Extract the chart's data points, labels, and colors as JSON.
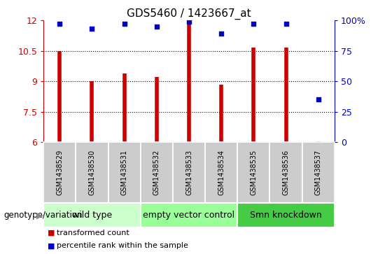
{
  "title": "GDS5460 / 1423667_at",
  "samples": [
    "GSM1438529",
    "GSM1438530",
    "GSM1438531",
    "GSM1438532",
    "GSM1438533",
    "GSM1438534",
    "GSM1438535",
    "GSM1438536",
    "GSM1438537"
  ],
  "transformed_counts": [
    10.5,
    9.0,
    9.4,
    9.2,
    11.8,
    8.85,
    10.65,
    10.65,
    6.05
  ],
  "percentile_ranks": [
    97,
    93,
    97,
    95,
    99,
    89,
    97,
    97,
    35
  ],
  "ylim_left": [
    6,
    12
  ],
  "ylim_right": [
    0,
    100
  ],
  "yticks_left": [
    6,
    7.5,
    9,
    10.5,
    12
  ],
  "yticks_right": [
    0,
    25,
    50,
    75,
    100
  ],
  "groups": [
    {
      "label": "wild type",
      "indices": [
        0,
        1,
        2
      ],
      "color": "#ccffcc"
    },
    {
      "label": "empty vector control",
      "indices": [
        3,
        4,
        5
      ],
      "color": "#99ff99"
    },
    {
      "label": "Smn knockdown",
      "indices": [
        6,
        7,
        8
      ],
      "color": "#44cc44"
    }
  ],
  "bar_color": "#cc0000",
  "dot_color": "#0000cc",
  "bg_sample_color": "#cccccc",
  "genotype_label": "genotype/variation",
  "legend_transformed": "transformed count",
  "legend_percentile": "percentile rank within the sample",
  "title_fontsize": 11,
  "tick_fontsize": 9,
  "sample_fontsize": 7,
  "group_fontsize": 9,
  "legend_fontsize": 8
}
